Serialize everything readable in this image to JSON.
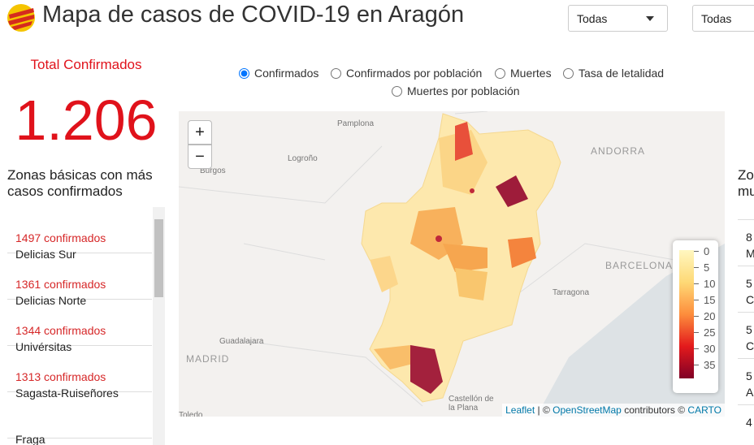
{
  "header": {
    "title": "Mapa de casos de COVID-19 en Aragón",
    "filters": [
      "Todas",
      "Todas"
    ]
  },
  "summary": {
    "label": "Total Confirmados",
    "value": "1.206"
  },
  "left_list": {
    "title": "Zonas básicas con más casos confirmados",
    "items": [
      {
        "count": "1497 confirmados",
        "name": "Delicias Sur"
      },
      {
        "count": "1361 confirmados",
        "name": "Delicias Norte"
      },
      {
        "count": "1344 confirmados",
        "name": "Univérsitas"
      },
      {
        "count": "1313 confirmados",
        "name": "Sagasta-Ruiseñores"
      },
      {
        "name": "Fraga"
      }
    ]
  },
  "metric_options": {
    "options": [
      "Confirmados",
      "Confirmados por población",
      "Muertes",
      "Tasa de letalidad",
      "Muertes por población"
    ],
    "selected": 0
  },
  "map": {
    "zoom": [
      "+",
      "−"
    ],
    "places": [
      "Pamplona",
      "Logroño",
      "Burgos",
      "ANDORRA",
      "BARCELONA",
      "Tarragona",
      "Guadalajara",
      "MADRID",
      "Castellón de",
      "la Plana",
      "Toledo"
    ],
    "legend": [
      0,
      5,
      10,
      15,
      20,
      25,
      30,
      35
    ],
    "attribution": {
      "leaflet": "Leaflet",
      "separator": "| ©",
      "osm": "OpenStreetMap",
      "contributors": "contributors ©",
      "carto": "CARTO"
    }
  },
  "right_list": {
    "title": [
      "Zo",
      "mu"
    ],
    "items": [
      [
        "8",
        "M"
      ],
      [
        "5",
        "C"
      ],
      [
        "5",
        "C"
      ],
      [
        "5",
        "A"
      ],
      [
        "4"
      ]
    ]
  }
}
